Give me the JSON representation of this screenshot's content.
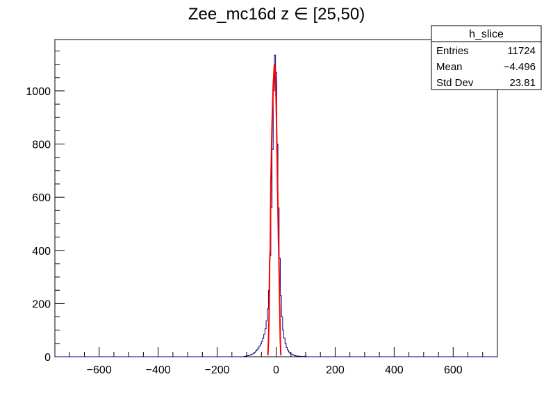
{
  "chart_data": {
    "type": "histogram",
    "title": "Zee_mc16d z  ∈ [25,50)",
    "xlabel": "",
    "ylabel": "",
    "xlim": [
      -750,
      750
    ],
    "ylim": [
      0,
      1193
    ],
    "x_ticks": [
      -600,
      -400,
      -200,
      0,
      200,
      400,
      600
    ],
    "x_tick_labels": [
      "−600",
      "−400",
      "−200",
      "0",
      "200",
      "400",
      "600"
    ],
    "y_ticks": [
      0,
      200,
      400,
      600,
      800,
      1000
    ],
    "y_tick_labels": [
      "0",
      "200",
      "400",
      "600",
      "800",
      "1000"
    ],
    "bin_width": 4,
    "series": [
      {
        "color": "#00008b",
        "style": "step",
        "bins": [
          [
            -110,
            1
          ],
          [
            -106,
            2
          ],
          [
            -102,
            3
          ],
          [
            -98,
            4
          ],
          [
            -94,
            5
          ],
          [
            -90,
            6
          ],
          [
            -86,
            8
          ],
          [
            -82,
            10
          ],
          [
            -78,
            13
          ],
          [
            -74,
            17
          ],
          [
            -70,
            22
          ],
          [
            -66,
            26
          ],
          [
            -62,
            33
          ],
          [
            -58,
            40
          ],
          [
            -54,
            48
          ],
          [
            -50,
            58
          ],
          [
            -46,
            70
          ],
          [
            -42,
            85
          ],
          [
            -38,
            105
          ],
          [
            -34,
            135
          ],
          [
            -30,
            180
          ],
          [
            -26,
            250
          ],
          [
            -22,
            380
          ],
          [
            -18,
            560
          ],
          [
            -14,
            780
          ],
          [
            -10,
            1000
          ],
          [
            -6,
            1135
          ],
          [
            -2,
            1070
          ],
          [
            2,
            800
          ],
          [
            6,
            560
          ],
          [
            10,
            370
          ],
          [
            14,
            230
          ],
          [
            18,
            150
          ],
          [
            22,
            100
          ],
          [
            26,
            70
          ],
          [
            30,
            50
          ],
          [
            34,
            35
          ],
          [
            38,
            25
          ],
          [
            42,
            18
          ],
          [
            46,
            13
          ],
          [
            50,
            10
          ],
          [
            54,
            8
          ],
          [
            58,
            6
          ],
          [
            62,
            4
          ],
          [
            66,
            3
          ],
          [
            70,
            3
          ],
          [
            74,
            2
          ],
          [
            78,
            2
          ],
          [
            82,
            1
          ],
          [
            86,
            1
          ],
          [
            90,
            1
          ],
          [
            94,
            1
          ],
          [
            98,
            2
          ]
        ]
      }
    ],
    "fit": {
      "color": "#ff0000",
      "points": [
        [
          -28,
          5
        ],
        [
          -26,
          60
        ],
        [
          -24,
          150
        ],
        [
          -22,
          360
        ],
        [
          -20,
          400
        ],
        [
          -18,
          650
        ],
        [
          -16,
          760
        ],
        [
          -14,
          870
        ],
        [
          -12,
          950
        ],
        [
          -10,
          1020
        ],
        [
          -8,
          1060
        ],
        [
          -6,
          1100
        ],
        [
          -4,
          1090
        ],
        [
          -2,
          1040
        ],
        [
          0,
          960
        ],
        [
          2,
          840
        ],
        [
          4,
          700
        ],
        [
          6,
          560
        ],
        [
          8,
          430
        ],
        [
          10,
          330
        ],
        [
          12,
          200
        ],
        [
          14,
          60
        ],
        [
          16,
          5
        ]
      ]
    },
    "legend_position": "top-right",
    "grid": false
  },
  "stats": {
    "name": "h_slice",
    "rows": [
      {
        "label": "Entries",
        "value": "11724"
      },
      {
        "label": "Mean",
        "value": "−4.496"
      },
      {
        "label": "Std Dev",
        "value": "23.81"
      }
    ]
  }
}
